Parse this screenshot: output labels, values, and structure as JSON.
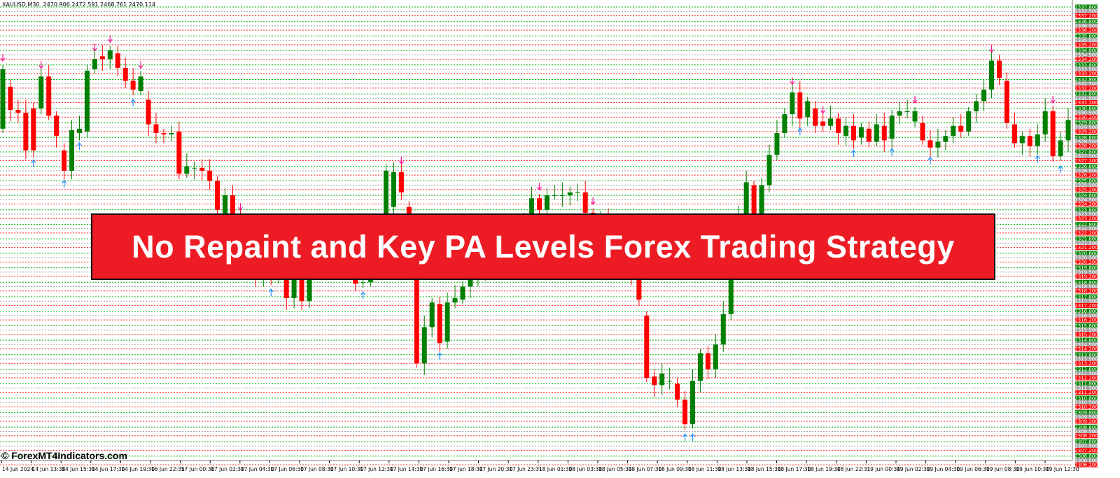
{
  "header": {
    "symbol": "XAUUSD,M30",
    "ohlc": "2470.906 2472.591 2468.761 2470.114"
  },
  "banner": {
    "title": "No Repaint and Key PA Levels Forex Trading Strategy",
    "color": "#ed1c24"
  },
  "watermark": "© ForexMT4Indicators.com",
  "colors": {
    "bull": "#008000",
    "bear": "#ff0000",
    "level_green": "#00b000",
    "level_gray": "#a0a0a0",
    "level_red": "#ff2020",
    "arrow_down": "#ff1493",
    "arrow_up": "#1e90ff"
  },
  "chart_data": {
    "type": "candlestick",
    "symbol": "XAUUSD",
    "timeframe": "M30",
    "ylim": [
      2305.9,
      2338.3
    ],
    "price_levels": {
      "top": 2337.8,
      "bottom": 2306.2,
      "pattern": [
        {
          "fraction": 0.8,
          "color": "green"
        },
        {
          "fraction": 0.5,
          "color": "gray"
        },
        {
          "fraction": 0.2,
          "color": "red"
        }
      ]
    },
    "x_tick_labels": [
      "14 Jun 2024",
      "14 Jun 13:30",
      "14 Jun 15:30",
      "14 Jun 17:30",
      "14 Jun 19:30",
      "16 Jun 22:35",
      "17 Jun 00:30",
      "17 Jun 02:30",
      "17 Jun 04:30",
      "17 Jun 06:30",
      "17 Jun 08:30",
      "17 Jun 10:30",
      "17 Jun 12:30",
      "17 Jun 14:30",
      "17 Jun 16:30",
      "17 Jun 18:30",
      "17 Jun 20:30",
      "17 Jun 23:31",
      "18 Jun 01:30",
      "18 Jun 03:30",
      "18 Jun 05:30",
      "18 Jun 07:30",
      "18 Jun 09:30",
      "18 Jun 11:30",
      "18 Jun 13:30",
      "18 Jun 15:30",
      "18 Jun 17:30",
      "18 Jun 19:30",
      "18 Jun 22:31",
      "19 Jun 00:30",
      "19 Jun 02:30",
      "19 Jun 04:30",
      "19 Jun 06:30",
      "19 Jun 08:30",
      "19 Jun 10:30",
      "19 Jun 12:30"
    ],
    "candles_oc": [
      [
        2329.4,
        2333.5
      ],
      [
        2332.3,
        2330.7
      ],
      [
        2330.7,
        2330.5
      ],
      [
        2330.5,
        2327.9
      ],
      [
        2330.8,
        2327.9
      ],
      [
        2330.8,
        2333.0
      ],
      [
        2333.0,
        2330.3
      ],
      [
        2330.3,
        2328.9
      ],
      [
        2327.9,
        2326.5
      ],
      [
        2326.5,
        2329.3
      ],
      [
        2329.1,
        2329.4
      ],
      [
        2329.2,
        2333.4
      ],
      [
        2333.5,
        2334.2
      ],
      [
        2334.4,
        2334.2
      ],
      [
        2334.2,
        2334.8
      ],
      [
        2334.6,
        2333.6
      ],
      [
        2333.6,
        2332.7
      ],
      [
        2332.7,
        2332.1
      ],
      [
        2332.0,
        2333.0
      ],
      [
        2331.4,
        2329.7
      ],
      [
        2329.7,
        2329.1
      ],
      [
        2329.1,
        2329.0
      ],
      [
        2329.0,
        2329.1
      ],
      [
        2329.2,
        2326.3
      ],
      [
        2326.3,
        2326.8
      ],
      [
        2326.7,
        2326.7
      ],
      [
        2326.7,
        2326.5
      ],
      [
        2326.5,
        2325.8
      ],
      [
        2325.8,
        2323.8
      ],
      [
        2323.5,
        2324.8
      ],
      [
        2324.8,
        2323.2
      ],
      [
        2323.2,
        2322.0
      ],
      [
        2322.0,
        2321.4
      ],
      [
        2321.4,
        2319.1
      ],
      [
        2319.0,
        2319.5
      ],
      [
        2320.2,
        2319.0
      ],
      [
        2319.0,
        2319.4
      ],
      [
        2319.0,
        2317.7
      ],
      [
        2317.7,
        2319.9
      ],
      [
        2319.9,
        2317.5
      ],
      [
        2317.5,
        2320.9
      ],
      [
        2320.9,
        2321.8
      ],
      [
        2321.8,
        2320.5
      ],
      [
        2320.5,
        2321.5
      ],
      [
        2321.5,
        2320.3
      ],
      [
        2320.3,
        2320.8
      ],
      [
        2320.8,
        2318.7
      ],
      [
        2318.8,
        2318.8
      ],
      [
        2318.8,
        2320.2
      ],
      [
        2319.9,
        2321.8
      ],
      [
        2321.8,
        2326.5
      ],
      [
        2324.0,
        2326.4
      ],
      [
        2326.4,
        2325.0
      ],
      [
        2324.0,
        2319.8
      ],
      [
        2319.9,
        2313.2
      ],
      [
        2313.2,
        2315.7
      ],
      [
        2315.7,
        2317.4
      ],
      [
        2317.3,
        2314.6
      ],
      [
        2314.7,
        2317.4
      ],
      [
        2317.4,
        2317.7
      ],
      [
        2317.6,
        2318.5
      ],
      [
        2318.5,
        2319.2
      ],
      [
        2319.2,
        2320.5
      ],
      [
        2320.5,
        2319.5
      ],
      [
        2319.5,
        2321.0
      ],
      [
        2321.0,
        2321.8
      ],
      [
        2321.8,
        2321.0
      ],
      [
        2321.0,
        2322.5
      ],
      [
        2322.5,
        2323.0
      ],
      [
        2323.0,
        2324.6
      ],
      [
        2324.6,
        2323.8
      ],
      [
        2323.8,
        2324.8
      ],
      [
        2324.8,
        2324.8
      ],
      [
        2324.8,
        2324.8
      ],
      [
        2324.8,
        2325.0
      ],
      [
        2325.0,
        2325.0
      ],
      [
        2325.0,
        2323.6
      ],
      [
        2323.6,
        2322.8
      ],
      [
        2322.8,
        2323.2
      ],
      [
        2323.2,
        2321.9
      ],
      [
        2321.9,
        2321.0
      ],
      [
        2321.0,
        2321.3
      ],
      [
        2321.3,
        2319.1
      ],
      [
        2319.1,
        2317.6
      ],
      [
        2316.5,
        2312.2
      ],
      [
        2312.3,
        2311.7
      ],
      [
        2311.7,
        2312.5
      ],
      [
        2312.0,
        2312.0
      ],
      [
        2311.8,
        2310.7
      ],
      [
        2310.7,
        2309.0
      ],
      [
        2309.0,
        2312.0
      ],
      [
        2312.0,
        2313.9
      ],
      [
        2313.9,
        2312.8
      ],
      [
        2312.8,
        2314.5
      ],
      [
        2314.5,
        2316.6
      ],
      [
        2316.6,
        2320.5
      ],
      [
        2320.5,
        2323.5
      ],
      [
        2323.5,
        2325.7
      ],
      [
        2325.5,
        2323.5
      ],
      [
        2323.5,
        2325.5
      ],
      [
        2325.5,
        2327.6
      ],
      [
        2327.6,
        2329.1
      ],
      [
        2329.1,
        2330.4
      ],
      [
        2330.4,
        2331.9
      ],
      [
        2331.9,
        2330.1
      ],
      [
        2330.2,
        2331.3
      ],
      [
        2330.8,
        2329.6
      ],
      [
        2329.9,
        2329.6
      ],
      [
        2329.6,
        2330.1
      ],
      [
        2330.1,
        2329.1
      ],
      [
        2328.9,
        2329.6
      ],
      [
        2329.6,
        2328.6
      ],
      [
        2328.8,
        2329.5
      ],
      [
        2329.4,
        2328.5
      ],
      [
        2328.5,
        2329.7
      ],
      [
        2329.6,
        2328.6
      ],
      [
        2328.7,
        2330.3
      ],
      [
        2330.3,
        2330.6
      ],
      [
        2330.6,
        2330.6
      ],
      [
        2329.9,
        2330.6
      ],
      [
        2329.8,
        2328.6
      ],
      [
        2328.6,
        2328.1
      ],
      [
        2328.1,
        2328.5
      ],
      [
        2328.5,
        2328.9
      ],
      [
        2328.9,
        2329.6
      ],
      [
        2329.6,
        2329.2
      ],
      [
        2329.2,
        2330.6
      ],
      [
        2330.6,
        2331.3
      ],
      [
        2331.3,
        2332.1
      ],
      [
        2332.1,
        2334.1
      ],
      [
        2334.1,
        2332.9
      ],
      [
        2332.7,
        2329.8
      ],
      [
        2329.7,
        2328.4
      ],
      [
        2328.4,
        2328.9
      ],
      [
        2328.9,
        2328.2
      ],
      [
        2328.2,
        2329.0
      ],
      [
        2329.0,
        2330.6
      ],
      [
        2330.6,
        2327.5
      ],
      [
        2327.5,
        2328.6
      ],
      [
        2328.6,
        2330.0
      ]
    ],
    "sell_arrow_candles": [
      0,
      5,
      12,
      14,
      18,
      31,
      52,
      70,
      77,
      103,
      107,
      119,
      129,
      137
    ],
    "buy_arrow_candles": [
      4,
      8,
      10,
      17,
      35,
      41,
      47,
      57,
      66,
      78,
      89,
      90,
      98,
      104,
      111,
      116,
      121,
      135,
      138
    ]
  }
}
